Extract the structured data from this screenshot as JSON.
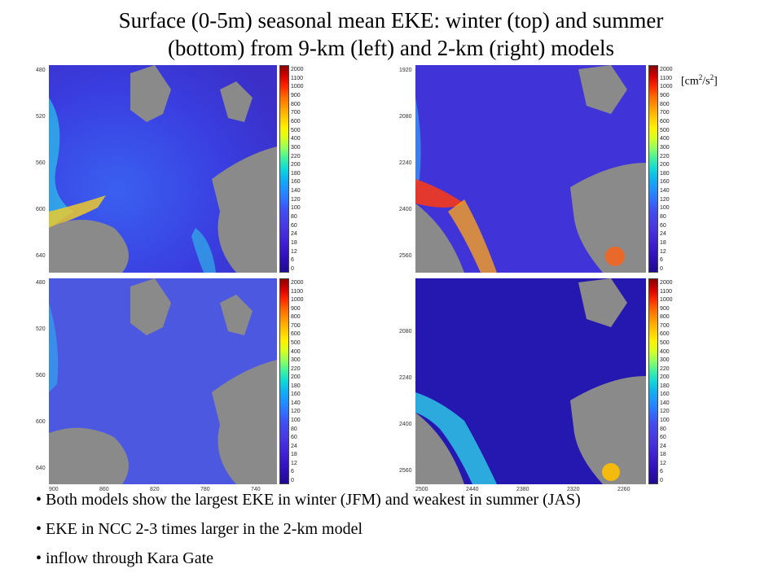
{
  "title": {
    "line1": "Surface (0-5m) seasonal mean EKE: winter (top) and summer",
    "line2": "(bottom) from 9-km (left) and 2-km (right) models"
  },
  "units": {
    "base": "[cm",
    "sup1": "2",
    "mid": "/s",
    "sup2": "2",
    "end": "]"
  },
  "colorbar_labels": [
    "2000",
    "1100",
    "1000",
    "900",
    "800",
    "700",
    "600",
    "500",
    "400",
    "300",
    "220",
    "200",
    "180",
    "160",
    "140",
    "120",
    "100",
    "80",
    "60",
    "24",
    "18",
    "12",
    "6",
    "0"
  ],
  "panels": {
    "top_left": {
      "y_ticks": [
        "480",
        "520",
        "560",
        "600",
        "640"
      ]
    },
    "top_right": {
      "y_ticks": [
        "1920",
        "2080",
        "2240",
        "2400",
        "2560"
      ]
    },
    "bottom_left": {
      "y_ticks": [
        "480",
        "520",
        "560",
        "600",
        "640"
      ],
      "x_ticks": [
        "900",
        "860",
        "820",
        "780",
        "740"
      ]
    },
    "bottom_right": {
      "y_ticks": [
        "2080",
        "2240",
        "2400",
        "2560"
      ],
      "x_ticks": [
        "2500",
        "2440",
        "2380",
        "2320",
        "2260"
      ]
    }
  },
  "bullets": [
    "• Both models show the largest EKE in winter (JFM) and weakest in summer (JAS)",
    "•  EKE in NCC 2-3 times larger in the 2-km model",
    "• inflow through Kara Gate"
  ]
}
